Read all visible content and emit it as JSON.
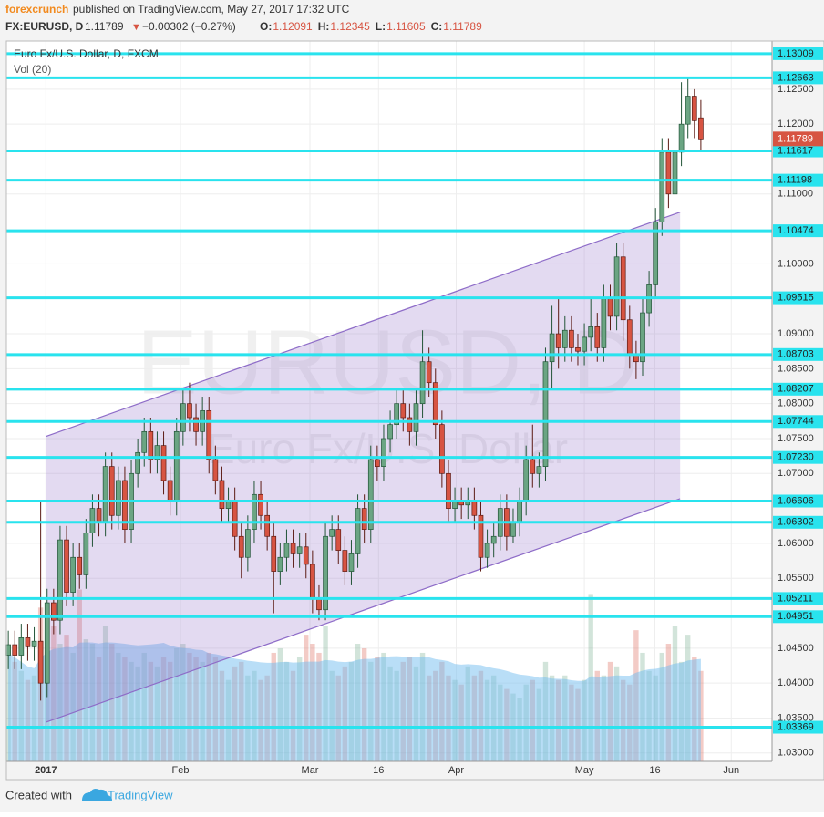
{
  "header": {
    "source": "forexcrunch",
    "published": "published on TradingView.com, May 27, 2017 17:32 UTC",
    "symbol": "FX:EURUSD, D",
    "last": "1.11789",
    "arrow": "▼",
    "change": "−0.00302 (−0.27%)",
    "quote": [
      {
        "label": "O:",
        "value": "1.12091"
      },
      {
        "label": "H:",
        "value": "1.12345"
      },
      {
        "label": "L:",
        "value": "1.11605"
      },
      {
        "label": "C:",
        "value": "1.11789"
      }
    ]
  },
  "footer": {
    "created": "Created with",
    "brand": "TradingView"
  },
  "chart_data": {
    "type": "candlestick",
    "legend": [
      "Euro Fx/U.S. Dollar, D, FXCM",
      "Vol (20)"
    ],
    "watermark": {
      "symbol": "EURUSD, D",
      "description": "Euro Fx/U.S. Dollar"
    },
    "colors": {
      "up": "#6ba583",
      "down": "#d75442",
      "level": "#29e3ee",
      "channel": "#8e6cc8",
      "volume_ma": "#74bdf0"
    },
    "xlim": [
      -0.3,
      118
    ],
    "ylim": [
      1.0288,
      1.1319
    ],
    "xticks": [
      {
        "value": 5.8,
        "label": "2017"
      },
      {
        "value": 26.6,
        "label": "Feb"
      },
      {
        "value": 46.6,
        "label": "Mar"
      },
      {
        "value": 57.2,
        "label": "16"
      },
      {
        "value": 69.2,
        "label": "Apr"
      },
      {
        "value": 89,
        "label": "May"
      },
      {
        "value": 99.9,
        "label": "16"
      },
      {
        "value": 111.7,
        "label": "Jun"
      }
    ],
    "yticks": [
      {
        "value": 1.125,
        "label": "1.12500"
      },
      {
        "value": 1.12,
        "label": "1.12000"
      },
      {
        "value": 1.11,
        "label": "1.11000"
      },
      {
        "value": 1.1,
        "label": "1.10000"
      },
      {
        "value": 1.09,
        "label": "1.09000"
      },
      {
        "value": 1.085,
        "label": "1.08500"
      },
      {
        "value": 1.08,
        "label": "1.08000"
      },
      {
        "value": 1.075,
        "label": "1.07500"
      },
      {
        "value": 1.07,
        "label": "1.07000"
      },
      {
        "value": 1.06,
        "label": "1.06000"
      },
      {
        "value": 1.055,
        "label": "1.05500"
      },
      {
        "value": 1.045,
        "label": "1.04500"
      },
      {
        "value": 1.04,
        "label": "1.04000"
      },
      {
        "value": 1.035,
        "label": "1.03500"
      },
      {
        "value": 1.03,
        "label": "1.03000"
      }
    ],
    "grid": true,
    "levels": [
      1.13009,
      1.12663,
      1.11617,
      1.11198,
      1.10474,
      1.09515,
      1.08703,
      1.08207,
      1.07744,
      {
        "value": 1.0723,
        "label": "1.07230"
      },
      1.06606,
      1.06302,
      1.05211,
      1.04951,
      1.03369
    ],
    "channel": {
      "x": [
        5.8,
        103.8
      ],
      "upper": [
        1.0753,
        1.1074
      ],
      "lower": [
        1.0344,
        1.0664
      ]
    },
    "open": [
      1.044,
      1.0455,
      1.044,
      1.0465,
      1.0452,
      1.046,
      1.04,
      1.0515,
      1.049,
      1.0605,
      1.053,
      1.058,
      1.0555,
      1.0615,
      1.065,
      1.063,
      1.071,
      1.064,
      1.069,
      1.062,
      1.07,
      1.073,
      1.076,
      1.072,
      1.074,
      1.069,
      1.066,
      1.076,
      1.08,
      1.078,
      1.076,
      1.079,
      1.072,
      1.069,
      1.065,
      1.066,
      1.061,
      1.058,
      1.062,
      1.067,
      1.064,
      1.061,
      1.056,
      1.058,
      1.06,
      1.0585,
      1.0595,
      1.057,
      1.052,
      1.0505,
      1.061,
      1.062,
      1.059,
      1.056,
      1.0585,
      1.065,
      1.062,
      1.072,
      1.071,
      1.075,
      1.077,
      1.08,
      1.078,
      1.076,
      1.08,
      1.086,
      1.083,
      1.077,
      1.07,
      1.065,
      1.066,
      1.0655,
      1.066,
      1.064,
      1.058,
      1.06,
      1.061,
      1.065,
      1.061,
      1.063,
      1.066,
      1.072,
      1.07,
      1.071,
      1.086,
      1.09,
      1.088,
      1.0905,
      1.088,
      1.0875,
      1.0895,
      1.091,
      1.088,
      1.095,
      1.0925,
      1.101,
      1.092,
      1.087,
      1.086,
      1.093,
      1.097,
      1.106,
      1.116,
      1.11,
      1.116,
      1.12,
      1.124,
      1.12091
    ],
    "high": [
      1.0475,
      1.0475,
      1.0485,
      1.0485,
      1.048,
      1.066,
      1.0535,
      1.0535,
      1.0625,
      1.0625,
      1.06,
      1.06,
      1.0635,
      1.067,
      1.067,
      1.073,
      1.073,
      1.071,
      1.071,
      1.072,
      1.075,
      1.078,
      1.078,
      1.076,
      1.076,
      1.071,
      1.078,
      1.082,
      1.083,
      1.08,
      1.081,
      1.081,
      1.074,
      1.071,
      1.068,
      1.068,
      1.063,
      1.064,
      1.069,
      1.069,
      1.066,
      1.063,
      1.06,
      1.062,
      1.062,
      1.0615,
      1.0615,
      1.059,
      1.054,
      1.063,
      1.064,
      1.064,
      1.061,
      1.0605,
      1.067,
      1.067,
      1.074,
      1.074,
      1.077,
      1.079,
      1.082,
      1.082,
      1.08,
      1.082,
      1.0905,
      1.088,
      1.085,
      1.079,
      1.072,
      1.068,
      1.068,
      1.068,
      1.068,
      1.066,
      1.062,
      1.063,
      1.067,
      1.067,
      1.065,
      1.068,
      1.074,
      1.077,
      1.073,
      1.088,
      1.094,
      1.095,
      1.0925,
      1.0925,
      1.09,
      1.0915,
      1.095,
      1.093,
      1.097,
      1.097,
      1.103,
      1.103,
      1.094,
      1.089,
      1.095,
      1.099,
      1.108,
      1.118,
      1.118,
      1.118,
      1.126,
      1.1265,
      1.125,
      1.12345
    ],
    "low": [
      1.042,
      1.042,
      1.042,
      1.0432,
      1.0432,
      1.0375,
      1.038,
      1.047,
      1.047,
      1.051,
      1.051,
      1.0535,
      1.0535,
      1.0595,
      1.061,
      1.061,
      1.062,
      1.062,
      1.06,
      1.06,
      1.068,
      1.071,
      1.07,
      1.07,
      1.067,
      1.064,
      1.064,
      1.074,
      1.076,
      1.074,
      1.074,
      1.07,
      1.067,
      1.063,
      1.063,
      1.059,
      1.055,
      1.056,
      1.06,
      1.062,
      1.059,
      1.05,
      1.054,
      1.056,
      1.0565,
      1.0565,
      1.055,
      1.05,
      1.049,
      1.049,
      1.059,
      1.057,
      1.054,
      1.054,
      1.0565,
      1.06,
      1.06,
      1.069,
      1.069,
      1.073,
      1.075,
      1.076,
      1.074,
      1.074,
      1.078,
      1.081,
      1.075,
      1.068,
      1.063,
      1.063,
      1.0635,
      1.0635,
      1.062,
      1.056,
      1.0565,
      1.058,
      1.059,
      1.059,
      1.06,
      1.061,
      1.064,
      1.068,
      1.068,
      1.069,
      1.082,
      1.085,
      1.086,
      1.086,
      1.0855,
      1.0855,
      1.0875,
      1.086,
      1.086,
      1.0905,
      1.0905,
      1.089,
      1.085,
      1.0835,
      1.084,
      1.091,
      1.095,
      1.104,
      1.108,
      1.108,
      1.114,
      1.118,
      1.118,
      1.11605
    ],
    "close": [
      1.0455,
      1.044,
      1.0465,
      1.0452,
      1.046,
      1.04,
      1.0515,
      1.049,
      1.0605,
      1.053,
      1.058,
      1.0555,
      1.0615,
      1.065,
      1.063,
      1.071,
      1.064,
      1.069,
      1.062,
      1.07,
      1.073,
      1.076,
      1.072,
      1.074,
      1.069,
      1.066,
      1.076,
      1.08,
      1.078,
      1.076,
      1.079,
      1.072,
      1.069,
      1.065,
      1.066,
      1.061,
      1.058,
      1.062,
      1.067,
      1.064,
      1.061,
      1.056,
      1.058,
      1.06,
      1.0585,
      1.0595,
      1.057,
      1.052,
      1.0505,
      1.061,
      1.062,
      1.059,
      1.056,
      1.0585,
      1.065,
      1.062,
      1.072,
      1.071,
      1.075,
      1.077,
      1.08,
      1.078,
      1.076,
      1.08,
      1.086,
      1.083,
      1.077,
      1.07,
      1.065,
      1.066,
      1.0655,
      1.066,
      1.064,
      1.058,
      1.06,
      1.061,
      1.065,
      1.061,
      1.063,
      1.066,
      1.072,
      1.07,
      1.071,
      1.086,
      1.09,
      1.088,
      1.0905,
      1.088,
      1.0875,
      1.0895,
      1.091,
      1.088,
      1.095,
      1.0925,
      1.101,
      1.092,
      1.087,
      1.086,
      1.093,
      1.097,
      1.106,
      1.116,
      1.11,
      1.116,
      1.12,
      1.124,
      1.1205,
      1.11789
    ],
    "vlim": [
      0,
      215
    ],
    "volume": [
      120,
      110,
      100,
      90,
      95,
      170,
      160,
      150,
      130,
      140,
      120,
      190,
      135,
      130,
      115,
      150,
      130,
      120,
      115,
      110,
      105,
      120,
      110,
      105,
      115,
      110,
      125,
      130,
      120,
      115,
      110,
      120,
      115,
      100,
      90,
      105,
      110,
      95,
      100,
      90,
      95,
      120,
      125,
      110,
      100,
      115,
      140,
      130,
      120,
      150,
      100,
      95,
      105,
      110,
      130,
      125,
      110,
      115,
      120,
      105,
      100,
      110,
      115,
      105,
      120,
      95,
      100,
      110,
      95,
      90,
      85,
      105,
      95,
      100,
      90,
      95,
      85,
      80,
      75,
      70,
      85,
      90,
      80,
      110,
      95,
      90,
      95,
      85,
      80,
      90,
      185,
      100,
      95,
      110,
      105,
      90,
      85,
      145,
      120,
      100,
      95,
      120,
      130,
      150,
      110,
      140,
      115,
      100
    ]
  }
}
